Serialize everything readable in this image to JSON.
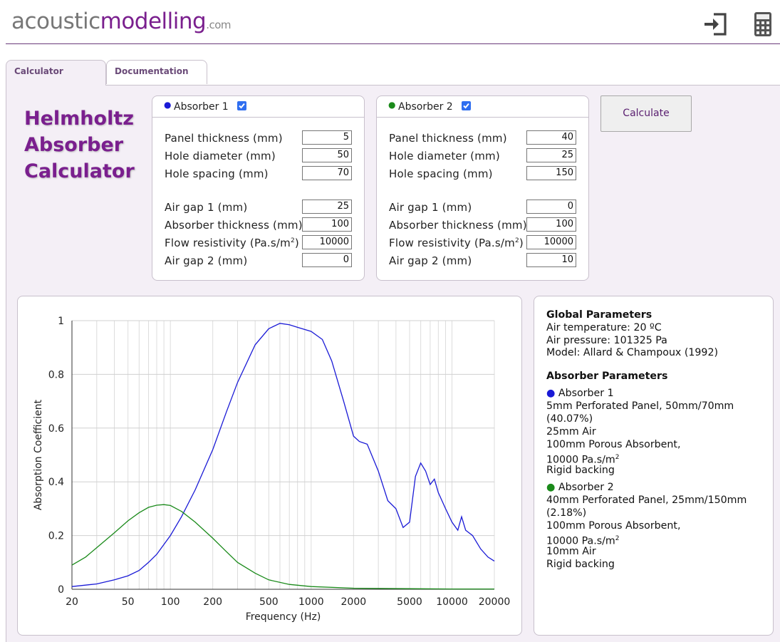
{
  "header": {
    "logo": {
      "part1": "acoustic",
      "part2": "modelling",
      "suffix": ".com"
    },
    "icons": [
      "login-icon",
      "calculator-icon"
    ]
  },
  "tabs": [
    {
      "label": "Calculator",
      "active": true
    },
    {
      "label": "Documentation",
      "active": false
    }
  ],
  "app_title": [
    "Helmholtz",
    "Absorber",
    "Calculator"
  ],
  "absorbers": [
    {
      "title": "Absorber 1",
      "color": "#1a1ad6",
      "checked": true,
      "fields": [
        {
          "label": "Panel thickness (mm)",
          "value": "5"
        },
        {
          "label": "Hole diameter (mm)",
          "value": "50"
        },
        {
          "label": "Hole spacing (mm)",
          "value": "70"
        },
        {
          "label": "Air gap 1 (mm)",
          "value": "25"
        },
        {
          "label": "Absorber thickness (mm)",
          "value": "100"
        },
        {
          "label": "Flow resistivity (Pa.s/m",
          "sup": "2",
          "label_end": ")",
          "value": "10000"
        },
        {
          "label": "Air gap 2 (mm)",
          "value": "0"
        }
      ]
    },
    {
      "title": "Absorber 2",
      "color": "#1a8a1a",
      "checked": true,
      "fields": [
        {
          "label": "Panel thickness (mm)",
          "value": "40"
        },
        {
          "label": "Hole diameter (mm)",
          "value": "25"
        },
        {
          "label": "Hole spacing (mm)",
          "value": "150"
        },
        {
          "label": "Air gap 1 (mm)",
          "value": "0"
        },
        {
          "label": "Absorber thickness (mm)",
          "value": "100"
        },
        {
          "label": "Flow resistivity (Pa.s/m",
          "sup": "2",
          "label_end": ")",
          "value": "10000"
        },
        {
          "label": "Air gap 2 (mm)",
          "value": "10"
        }
      ]
    }
  ],
  "calculate_label": "Calculate",
  "info": {
    "global_title": "Global Parameters",
    "global_lines": [
      "Air temperature: 20 ºC",
      "Air pressure: 101325 Pa",
      "Model: Allard & Champoux (1992)"
    ],
    "absorber_title": "Absorber Parameters",
    "abs1": {
      "name": "Absorber 1",
      "lines": [
        "5mm Perforated Panel, 50mm/70mm",
        "(40.07%)",
        "25mm Air",
        "100mm Porous Absorbent,",
        "10000 Pa.s/m",
        "Rigid backing"
      ]
    },
    "abs2": {
      "name": "Absorber 2",
      "lines": [
        "40mm Perforated Panel, 25mm/150mm",
        "(2.18%)",
        "100mm Porous Absorbent,",
        "10000 Pa.s/m",
        "10mm Air",
        "Rigid backing"
      ]
    },
    "unit_sup": "2"
  },
  "chart_data": {
    "type": "line",
    "xlabel": "Frequency (Hz)",
    "ylabel": "Absorption Coefficient",
    "x_scale": "log",
    "xlim": [
      20,
      20000
    ],
    "ylim": [
      0,
      1
    ],
    "x_ticks": [
      20,
      50,
      100,
      200,
      500,
      1000,
      2000,
      5000,
      10000,
      20000
    ],
    "y_ticks": [
      0,
      0.2,
      0.4,
      0.6,
      0.8,
      1
    ],
    "grid": true,
    "series": [
      {
        "color": "#1a1ad6",
        "points": [
          [
            20,
            0.01
          ],
          [
            30,
            0.02
          ],
          [
            40,
            0.035
          ],
          [
            50,
            0.05
          ],
          [
            60,
            0.07
          ],
          [
            70,
            0.1
          ],
          [
            80,
            0.13
          ],
          [
            100,
            0.2
          ],
          [
            120,
            0.27
          ],
          [
            150,
            0.37
          ],
          [
            200,
            0.52
          ],
          [
            250,
            0.66
          ],
          [
            300,
            0.77
          ],
          [
            400,
            0.91
          ],
          [
            500,
            0.97
          ],
          [
            600,
            0.99
          ],
          [
            700,
            0.985
          ],
          [
            800,
            0.975
          ],
          [
            1000,
            0.96
          ],
          [
            1200,
            0.93
          ],
          [
            1400,
            0.85
          ],
          [
            1700,
            0.7
          ],
          [
            2000,
            0.57
          ],
          [
            2200,
            0.55
          ],
          [
            2500,
            0.54
          ],
          [
            3000,
            0.44
          ],
          [
            3500,
            0.33
          ],
          [
            4000,
            0.3
          ],
          [
            4500,
            0.23
          ],
          [
            5000,
            0.25
          ],
          [
            5500,
            0.42
          ],
          [
            6000,
            0.47
          ],
          [
            6500,
            0.44
          ],
          [
            7000,
            0.39
          ],
          [
            7500,
            0.41
          ],
          [
            8000,
            0.36
          ],
          [
            9000,
            0.3
          ],
          [
            10000,
            0.25
          ],
          [
            11000,
            0.22
          ],
          [
            11700,
            0.27
          ],
          [
            12500,
            0.22
          ],
          [
            14000,
            0.2
          ],
          [
            16000,
            0.15
          ],
          [
            18000,
            0.12
          ],
          [
            20000,
            0.105
          ]
        ]
      },
      {
        "color": "#1a8a1a",
        "points": [
          [
            20,
            0.09
          ],
          [
            25,
            0.12
          ],
          [
            30,
            0.155
          ],
          [
            40,
            0.21
          ],
          [
            50,
            0.255
          ],
          [
            60,
            0.285
          ],
          [
            70,
            0.305
          ],
          [
            80,
            0.313
          ],
          [
            90,
            0.315
          ],
          [
            100,
            0.312
          ],
          [
            120,
            0.29
          ],
          [
            150,
            0.25
          ],
          [
            200,
            0.19
          ],
          [
            250,
            0.14
          ],
          [
            300,
            0.1
          ],
          [
            400,
            0.06
          ],
          [
            500,
            0.035
          ],
          [
            700,
            0.018
          ],
          [
            1000,
            0.01
          ],
          [
            2000,
            0.004
          ],
          [
            5000,
            0.002
          ],
          [
            10000,
            0.001
          ],
          [
            20000,
            0.001
          ]
        ]
      }
    ]
  }
}
